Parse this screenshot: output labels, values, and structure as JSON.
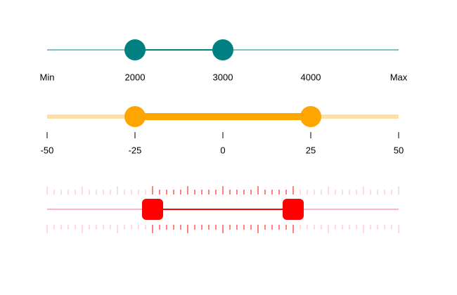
{
  "sliders": [
    {
      "limits": [
        1000,
        5000
      ],
      "values": [
        2000,
        3000
      ],
      "ticks": [
        {
          "value": 1000,
          "label": "Min"
        },
        2000,
        3000,
        4000,
        {
          "value": 5000,
          "label": "Max"
        }
      ],
      "color": "#008080",
      "track_color": "#7fbfbf",
      "thumb": "circle",
      "tick_marks": false
    },
    {
      "limits": [
        -50,
        50
      ],
      "values": [
        -25,
        25
      ],
      "ticks": [
        -50,
        -25,
        0,
        25,
        50
      ],
      "color": "#ffa500",
      "track_color": "#ffdfa6",
      "thumb": "circle",
      "tick_marks": true
    },
    {
      "limits": [
        0,
        100
      ],
      "values": [
        30,
        70
      ],
      "major_ticks": [
        0,
        10,
        20,
        30,
        40,
        50,
        60,
        70,
        80,
        90,
        100
      ],
      "minor_ticks": [
        2,
        4,
        6,
        8,
        12,
        14,
        16,
        18,
        22,
        24,
        26,
        28,
        32,
        34,
        36,
        38,
        42,
        44,
        46,
        48,
        52,
        54,
        56,
        58,
        62,
        64,
        66,
        68,
        72,
        74,
        76,
        78,
        82,
        84,
        86,
        88,
        92,
        94,
        96,
        98
      ],
      "color": "#ff0000",
      "track_color": "#ffb6c1",
      "thumb": "square"
    }
  ]
}
